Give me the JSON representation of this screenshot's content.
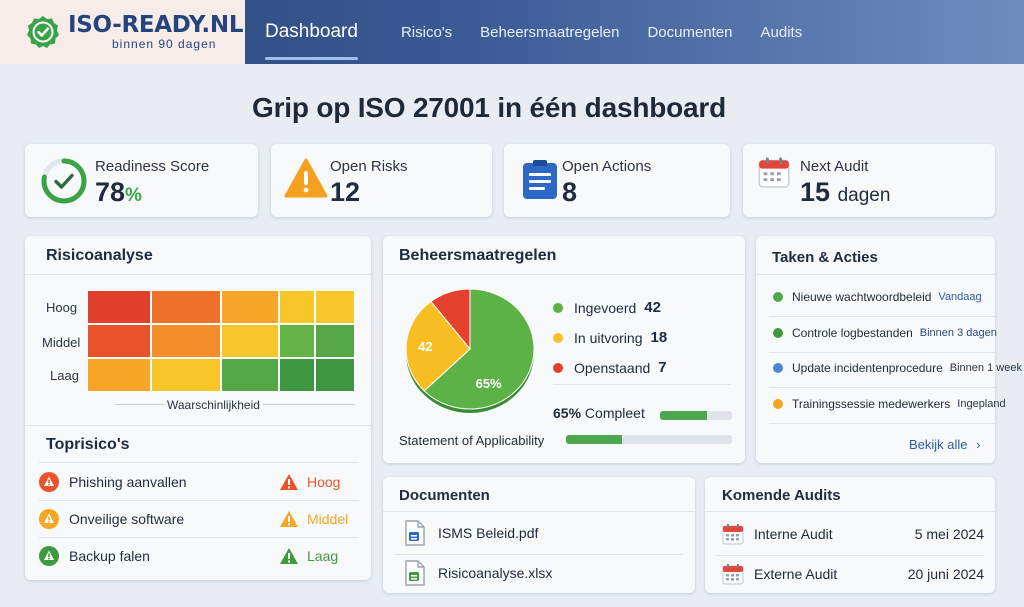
{
  "brand": {
    "name": "ISO-READY.NL",
    "tagline": "binnen 90 dagen"
  },
  "nav": {
    "items": [
      "Dashboard",
      "Risico's",
      "Beheersmaatregelen",
      "Documenten",
      "Audits"
    ],
    "active": "Dashboard"
  },
  "headline": "Grip op ISO 27001 in één dashboard",
  "kpis": {
    "readiness": {
      "label": "Readiness Score",
      "value": "78",
      "unit": "%",
      "progress": 0.78,
      "color": "#3aa346"
    },
    "risks": {
      "label": "Open Risks",
      "value": "12",
      "icon": "warning-icon"
    },
    "actions": {
      "label": "Open Actions",
      "value": "8",
      "icon": "document-list-icon"
    },
    "audit": {
      "label": "Next Audit",
      "value": "15",
      "unit": "dagen",
      "icon": "calendar-icon"
    }
  },
  "risk_analysis": {
    "title": "Risicoanalyse",
    "rows": [
      "Hoog",
      "Middel",
      "Laag"
    ],
    "axis_label": "Waarschinlijkheid",
    "colors": [
      [
        "#e0402b",
        "#ef7129",
        "#f7a628",
        "#f9c62a",
        "#f9c62a"
      ],
      [
        "#e9532b",
        "#f58d2a",
        "#f9c62a",
        "#65b245",
        "#54a744"
      ],
      [
        "#f7a628",
        "#f9c62a",
        "#54a744",
        "#3e9640",
        "#3e9640"
      ]
    ]
  },
  "top_risks": {
    "title": "Toprisico's",
    "items": [
      {
        "name": "Phishing aanvallen",
        "level": "Hoog",
        "color": "#e9532b"
      },
      {
        "name": "Onveilige software",
        "level": "Middel",
        "color": "#f5a623"
      },
      {
        "name": "Backup falen",
        "level": "Laag",
        "color": "#3f9a3f"
      }
    ]
  },
  "controls": {
    "title": "Beheersmaatregelen",
    "legend": [
      {
        "label": "Ingevoerd",
        "value": 42,
        "color": "#5cb246"
      },
      {
        "label": "In uitvoring",
        "value": 18,
        "color": "#f9be24"
      },
      {
        "label": "Openstaand",
        "value": 7,
        "color": "#e3412b"
      }
    ],
    "pie_labels": {
      "major": "65%",
      "mid": "42"
    },
    "complete": {
      "pct": "65%",
      "label": "Compleet",
      "progress": 0.65
    },
    "soa": {
      "label": "Statement of Applicability",
      "progress": 0.34
    }
  },
  "tasks": {
    "title": "Taken & Acties",
    "items": [
      {
        "name": "Nieuwe wachtwoordbeleid",
        "due": "Vandaag",
        "color": "#4ca74e",
        "due_color": "#2a5aa8"
      },
      {
        "name": "Controle logbestanden",
        "due": "Binnen 3 dagen",
        "color": "#3f9a3f",
        "due_color": "#2a4a7e"
      },
      {
        "name": "Update incidentenprocedure",
        "due": "Binnen 1 week",
        "color": "#4a86d6",
        "due_color": "#2b3545"
      },
      {
        "name": "Trainingssessie medewerkers",
        "due": "Ingepland",
        "color": "#f5a623",
        "due_color": "#2b3545"
      }
    ],
    "link": "Bekijk alle"
  },
  "documents": {
    "title": "Documenten",
    "items": [
      {
        "name": "ISMS Beleid.pdf",
        "icon": "pdf-file-icon"
      },
      {
        "name": "Risicoanalyse.xlsx",
        "icon": "spreadsheet-file-icon"
      }
    ]
  },
  "audits": {
    "title": "Komende Audits",
    "items": [
      {
        "name": "Interne Audit",
        "date": "5 mei 2024"
      },
      {
        "name": "Externe Audit",
        "date": "20 juni 2024"
      }
    ]
  }
}
